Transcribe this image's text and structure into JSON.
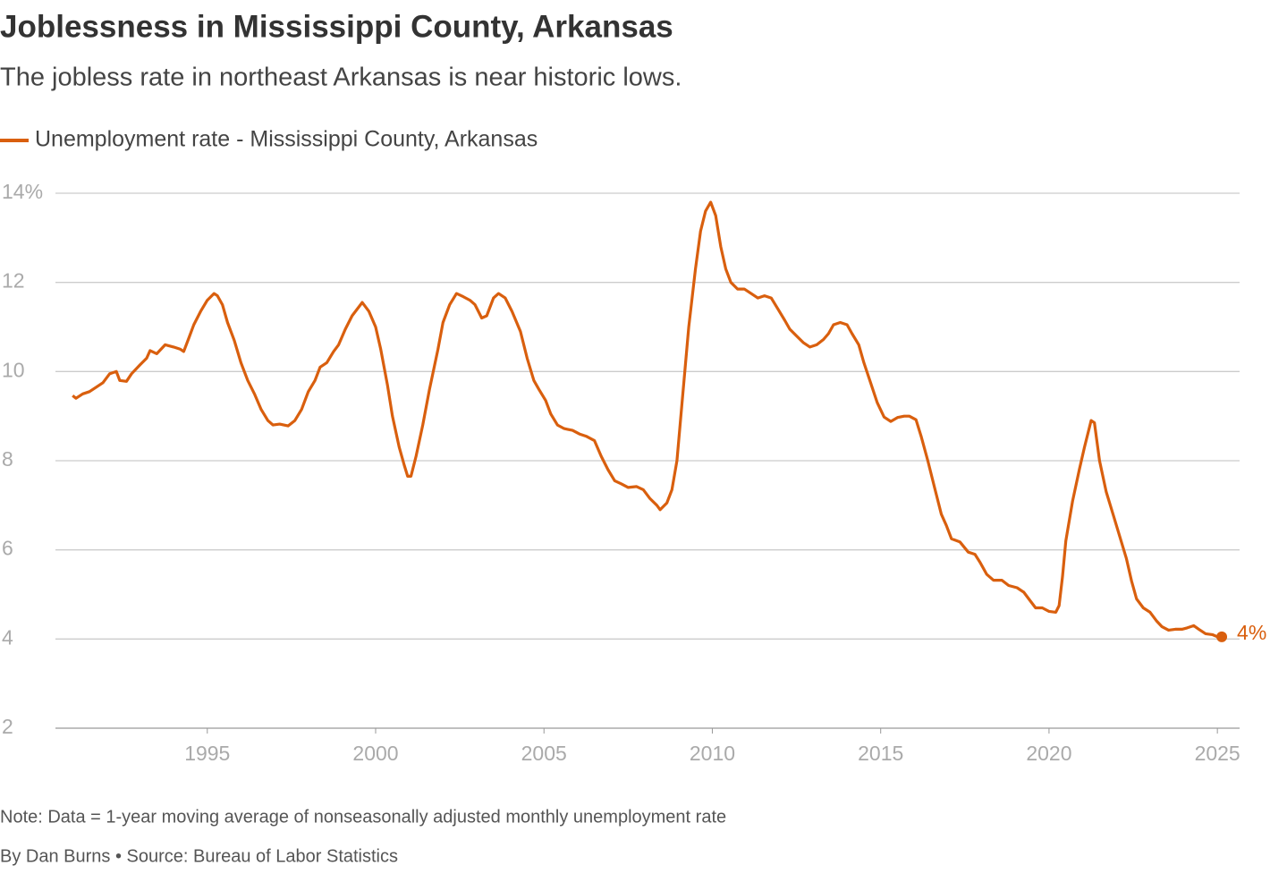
{
  "chart_data": {
    "type": "line",
    "title": "Joblessness in Mississippi County, Arkansas",
    "subtitle": "The jobless rate in northeast Arkansas is near historic lows.",
    "note": "Note: Data = 1-year moving average of nonseasonally adjusted monthly unemployment rate",
    "credit": "By Dan Burns • Source: Bureau of Labor Statistics",
    "end_label": "4%",
    "xlim": [
      1990.49,
      2025.66
    ],
    "xticks": [
      1995,
      2000,
      2005,
      2010,
      2015,
      2020,
      2025
    ],
    "ylim": [
      2,
      14
    ],
    "yticks": [
      2,
      4,
      6,
      8,
      10,
      12,
      {
        "value": 14,
        "label": "14%"
      }
    ],
    "grid": true,
    "x": [
      1991.0,
      1991.1,
      1991.3,
      1991.5,
      1991.7,
      1991.9,
      1992.1,
      1992.3,
      1992.4,
      1992.6,
      1992.75,
      1993.0,
      1993.2,
      1993.3,
      1993.5,
      1993.75,
      1994.0,
      1994.2,
      1994.3,
      1994.45,
      1994.6,
      1994.8,
      1995.0,
      1995.2,
      1995.3,
      1995.45,
      1995.6,
      1995.8,
      1996.0,
      1996.2,
      1996.4,
      1996.6,
      1996.8,
      1996.95,
      1997.15,
      1997.4,
      1997.6,
      1997.8,
      1998.0,
      1998.2,
      1998.35,
      1998.55,
      1998.75,
      1998.9,
      1999.1,
      1999.3,
      1999.5,
      1999.6,
      1999.8,
      2000.0,
      2000.15,
      2000.35,
      2000.5,
      2000.7,
      2000.85,
      2000.95,
      2001.05,
      2001.2,
      2001.4,
      2001.6,
      2001.85,
      2002.0,
      2002.2,
      2002.4,
      2002.6,
      2002.8,
      2002.95,
      2003.15,
      2003.3,
      2003.5,
      2003.65,
      2003.85,
      2004.05,
      2004.3,
      2004.5,
      2004.7,
      2004.85,
      2005.05,
      2005.2,
      2005.4,
      2005.6,
      2005.85,
      2006.05,
      2006.25,
      2006.5,
      2006.7,
      2006.9,
      2007.1,
      2007.3,
      2007.5,
      2007.75,
      2007.95,
      2008.15,
      2008.35,
      2008.45,
      2008.65,
      2008.8,
      2008.95,
      2009.1,
      2009.3,
      2009.5,
      2009.65,
      2009.8,
      2009.95,
      2010.1,
      2010.25,
      2010.4,
      2010.55,
      2010.75,
      2010.95,
      2011.15,
      2011.35,
      2011.55,
      2011.75,
      2011.95,
      2012.15,
      2012.3,
      2012.5,
      2012.7,
      2012.9,
      2013.1,
      2013.3,
      2013.45,
      2013.6,
      2013.8,
      2014.0,
      2014.15,
      2014.35,
      2014.5,
      2014.7,
      2014.9,
      2015.1,
      2015.3,
      2015.5,
      2015.7,
      2015.85,
      2016.05,
      2016.2,
      2016.4,
      2016.6,
      2016.8,
      2016.95,
      2017.1,
      2017.35,
      2017.6,
      2017.8,
      2017.95,
      2018.15,
      2018.35,
      2018.6,
      2018.8,
      2019.05,
      2019.25,
      2019.45,
      2019.6,
      2019.8,
      2020.0,
      2020.2,
      2020.3,
      2020.4,
      2020.5,
      2020.7,
      2020.9,
      2021.05,
      2021.25,
      2021.35,
      2021.5,
      2021.7,
      2021.9,
      2022.1,
      2022.3,
      2022.45,
      2022.6,
      2022.8,
      2023.0,
      2023.2,
      2023.35,
      2023.55,
      2023.75,
      2023.95,
      2024.1,
      2024.3,
      2024.45,
      2024.65,
      2024.85,
      2025.0,
      2025.13
    ],
    "series": [
      {
        "name": "Unemployment rate - Mississippi County, Arkansas",
        "color": "#d95f0e",
        "values": [
          9.46,
          9.4,
          9.5,
          9.55,
          9.65,
          9.75,
          9.95,
          10.0,
          9.8,
          9.78,
          9.95,
          10.15,
          10.3,
          10.47,
          10.4,
          10.6,
          10.55,
          10.5,
          10.45,
          10.75,
          11.05,
          11.35,
          11.6,
          11.75,
          11.7,
          11.5,
          11.1,
          10.7,
          10.2,
          9.8,
          9.5,
          9.15,
          8.9,
          8.8,
          8.82,
          8.78,
          8.9,
          9.15,
          9.55,
          9.8,
          10.1,
          10.2,
          10.45,
          10.6,
          10.95,
          11.25,
          11.45,
          11.55,
          11.35,
          11.0,
          10.5,
          9.7,
          9.0,
          8.3,
          7.9,
          7.65,
          7.65,
          8.1,
          8.8,
          9.6,
          10.5,
          11.1,
          11.5,
          11.75,
          11.68,
          11.6,
          11.5,
          11.2,
          11.25,
          11.65,
          11.75,
          11.65,
          11.35,
          10.9,
          10.3,
          9.8,
          9.6,
          9.35,
          9.05,
          8.8,
          8.72,
          8.68,
          8.6,
          8.55,
          8.45,
          8.1,
          7.8,
          7.55,
          7.48,
          7.4,
          7.42,
          7.35,
          7.15,
          7.0,
          6.9,
          7.05,
          7.35,
          8.0,
          9.3,
          11.0,
          12.3,
          13.15,
          13.6,
          13.8,
          13.5,
          12.8,
          12.3,
          12.0,
          11.85,
          11.85,
          11.75,
          11.65,
          11.7,
          11.65,
          11.4,
          11.15,
          10.95,
          10.8,
          10.65,
          10.55,
          10.6,
          10.72,
          10.85,
          11.05,
          11.1,
          11.05,
          10.85,
          10.6,
          10.2,
          9.75,
          9.3,
          8.98,
          8.88,
          8.97,
          9.0,
          9.0,
          8.92,
          8.55,
          8.0,
          7.4,
          6.8,
          6.55,
          6.25,
          6.18,
          5.95,
          5.9,
          5.72,
          5.45,
          5.32,
          5.32,
          5.2,
          5.15,
          5.05,
          4.85,
          4.7,
          4.7,
          4.62,
          4.6,
          4.75,
          5.4,
          6.2,
          7.1,
          7.8,
          8.3,
          8.9,
          8.85,
          8.0,
          7.3,
          6.8,
          6.3,
          5.8,
          5.3,
          4.9,
          4.7,
          4.6,
          4.4,
          4.28,
          4.2,
          4.22,
          4.22,
          4.25,
          4.3,
          4.22,
          4.12,
          4.1,
          4.05,
          4.05
        ]
      }
    ]
  }
}
